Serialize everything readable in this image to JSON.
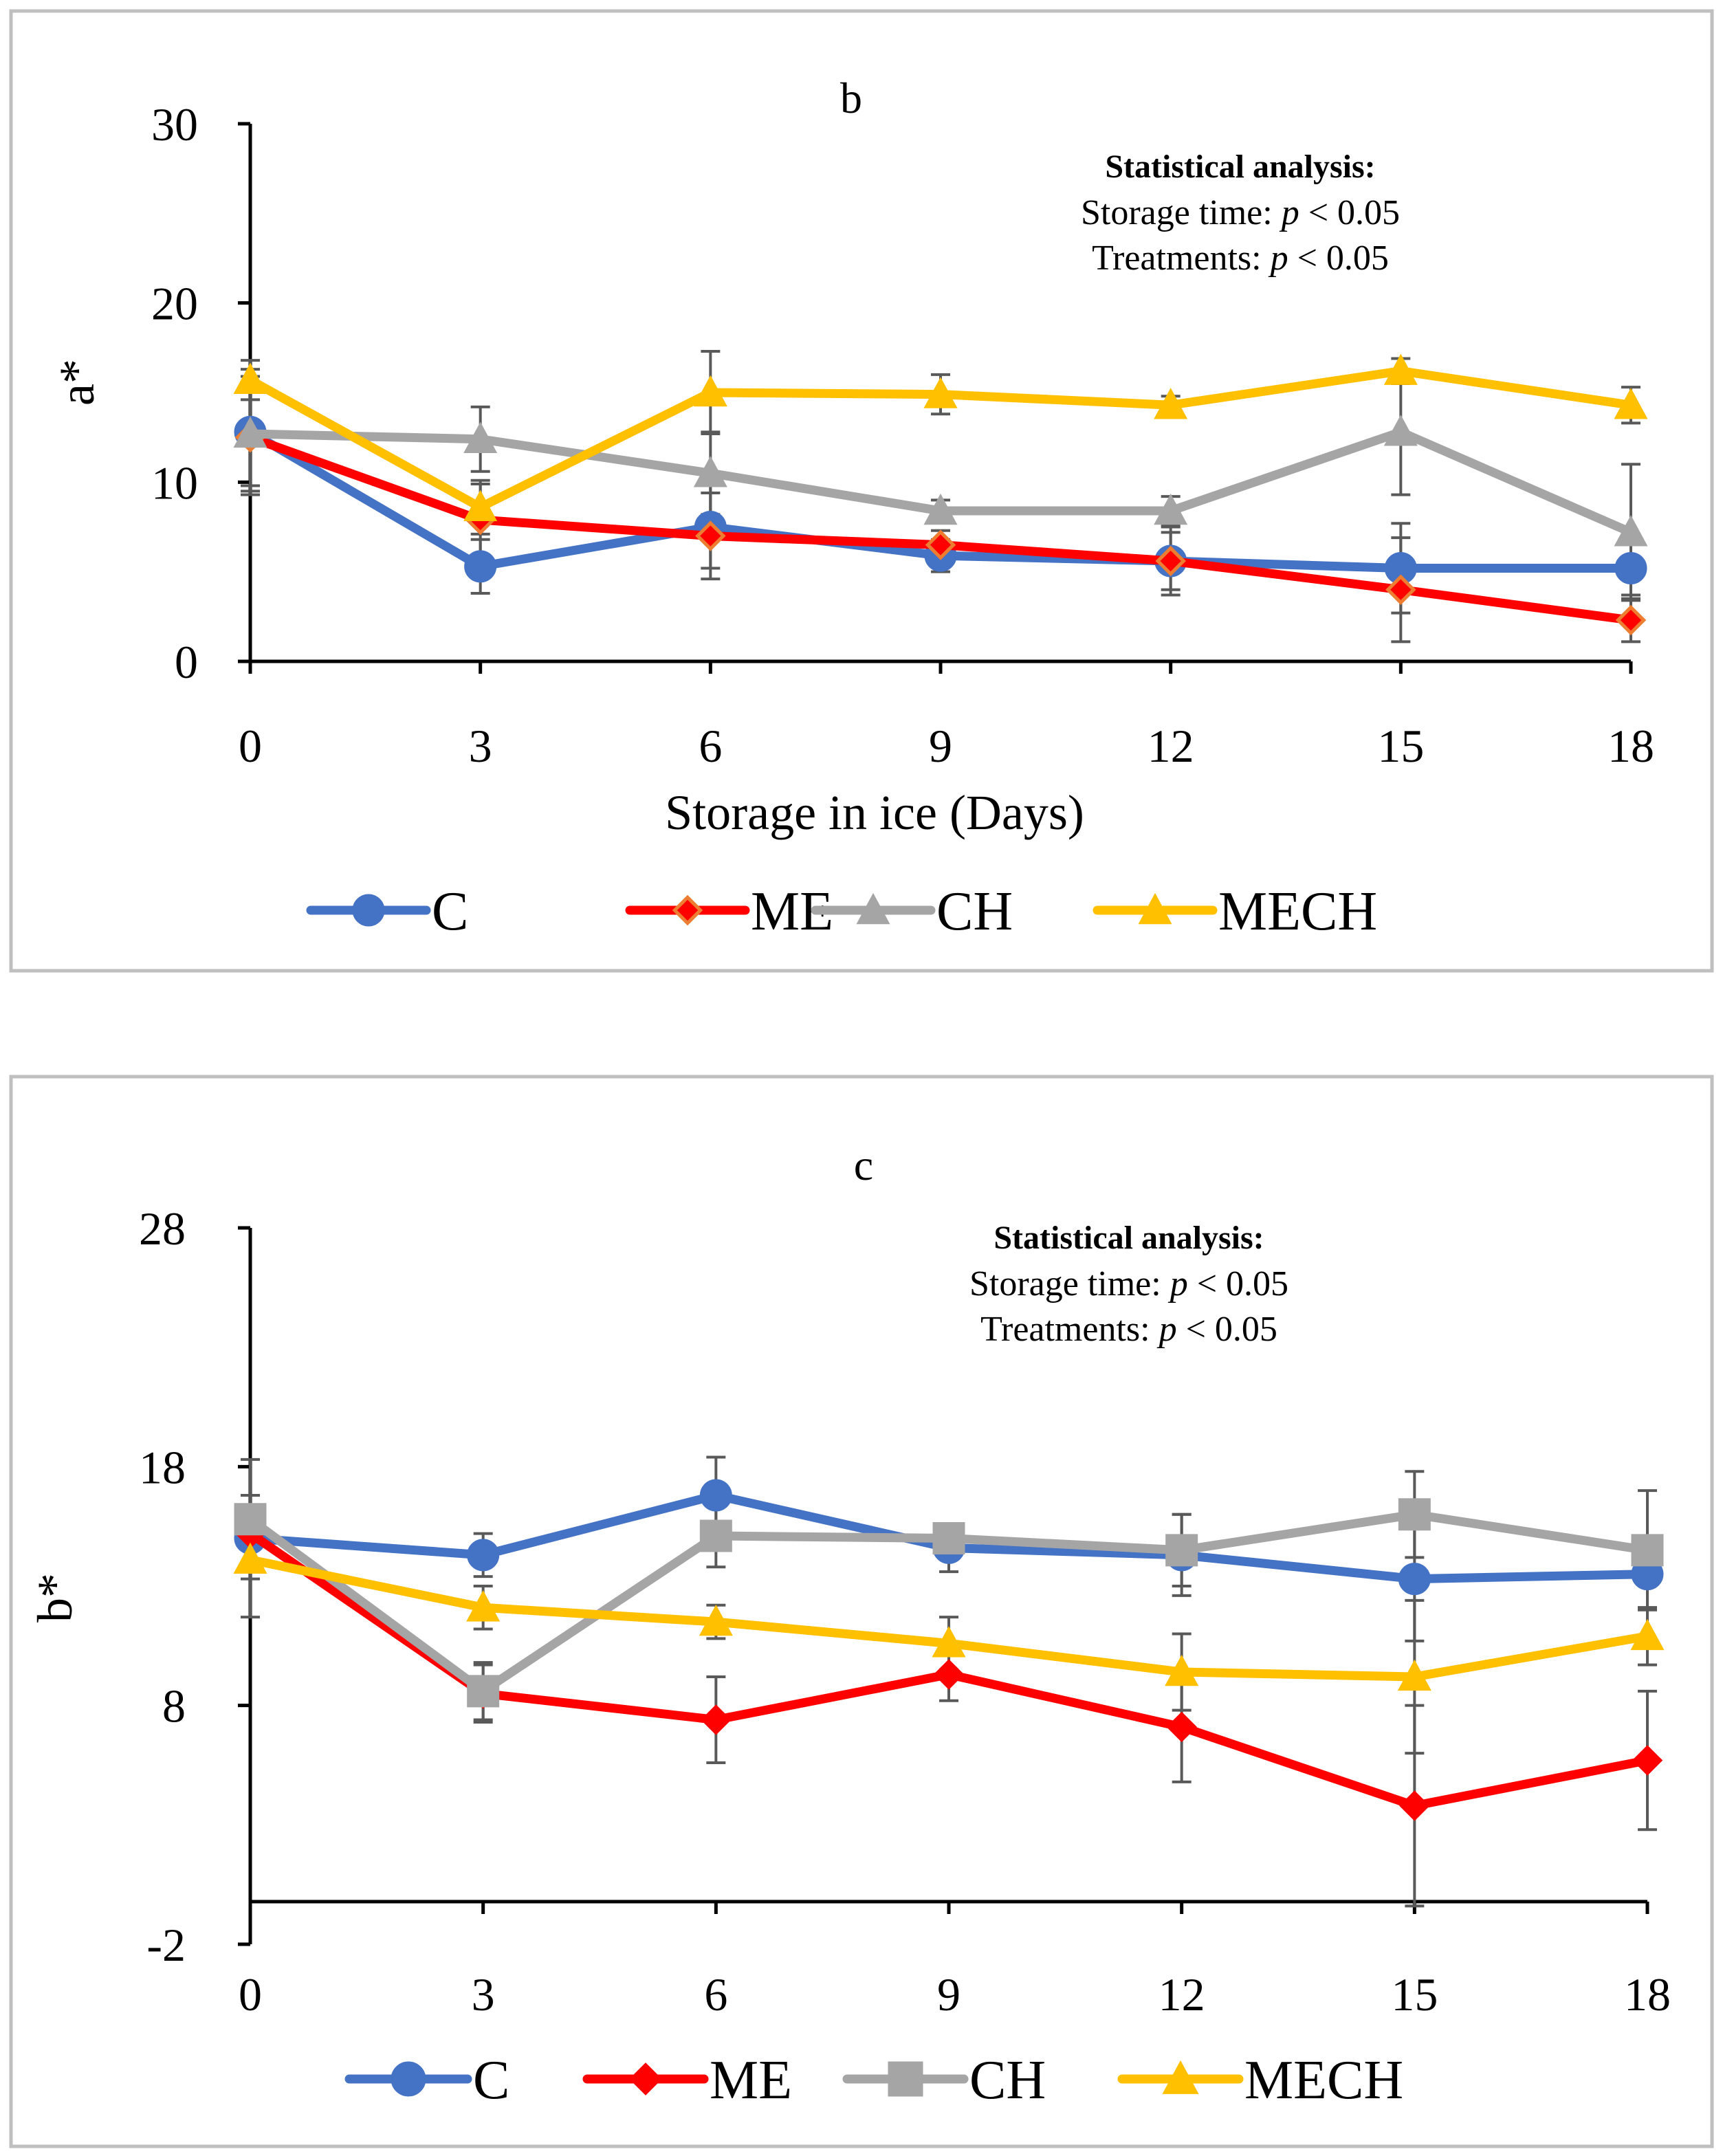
{
  "chart_data": [
    {
      "type": "line",
      "panel": "b",
      "xlabel": "Storage in ice (Days)",
      "ylabel": "a*",
      "x": [
        0,
        3,
        6,
        9,
        12,
        15,
        18
      ],
      "x_tick_labels": [
        "0",
        "3",
        "6",
        "9",
        "12",
        "15",
        "18"
      ],
      "ylim": [
        0,
        30
      ],
      "y_ticks": [
        0,
        10,
        20,
        30
      ],
      "y_tick_labels": [
        "0",
        "10",
        "20",
        "30"
      ],
      "stats": {
        "title": "Statistical analysis:",
        "line1_prefix": "Storage time: ",
        "line1_p": "p",
        "line1_suffix": " < 0.05",
        "line2_prefix": "Treatments: ",
        "line2_p": "p",
        "line2_suffix": " < 0.05"
      },
      "legend_position": "bottom",
      "series": [
        {
          "name": "C",
          "color": "#4472C4",
          "marker": "circle",
          "values": [
            12.8,
            5.3,
            7.5,
            5.9,
            5.6,
            5.2,
            5.2
          ],
          "errors": [
            3.5,
            1.5,
            2.3,
            0.9,
            1.9,
            2.5,
            1.5
          ]
        },
        {
          "name": "ME",
          "color": "#FF0000",
          "marker": "diamond",
          "marker_fill": "#FF0000",
          "marker_stroke": "#ED7D31",
          "values": [
            12.5,
            7.9,
            7.0,
            6.5,
            5.6,
            4.0,
            2.3
          ],
          "errors": [
            2.7,
            2.0,
            2.4,
            0.8,
            1.6,
            2.9,
            1.2
          ]
        },
        {
          "name": "CH",
          "color": "#A5A5A5",
          "marker": "triangle",
          "values": [
            12.7,
            12.4,
            10.5,
            8.4,
            8.4,
            12.8,
            7.2
          ],
          "errors": [
            3.2,
            1.8,
            2.3,
            0.6,
            0.8,
            3.5,
            3.8
          ]
        },
        {
          "name": "MECH",
          "color": "#FFC000",
          "marker": "triangle",
          "values": [
            15.7,
            8.6,
            15.0,
            14.9,
            14.3,
            16.2,
            14.3
          ],
          "errors": [
            1.1,
            1.5,
            2.3,
            1.1,
            0.5,
            0.7,
            1.0
          ]
        }
      ]
    },
    {
      "type": "line",
      "panel": "c",
      "xlabel": "",
      "ylabel": "b*",
      "x": [
        0,
        3,
        6,
        9,
        12,
        15,
        18
      ],
      "x_tick_labels": [
        "0",
        "3",
        "6",
        "9",
        "12",
        "15",
        "18"
      ],
      "ylim": [
        -2,
        28
      ],
      "y_ticks": [
        -2,
        8,
        18,
        28
      ],
      "y_tick_labels": [
        "-2",
        "8",
        "18",
        "28"
      ],
      "x_axis_at": 0,
      "stats": {
        "title": "Statistical analysis:",
        "line1_prefix": "Storage time: ",
        "line1_p": "p",
        "line1_suffix": " < 0.05",
        "line2_prefix": "Treatments: ",
        "line2_p": "p",
        "line2_suffix": " < 0.05"
      },
      "legend_position": "bottom",
      "series": [
        {
          "name": "C",
          "color": "#4472C4",
          "marker": "circle",
          "values": [
            15.0,
            14.3,
            16.8,
            14.6,
            14.3,
            13.3,
            13.5
          ],
          "errors": [
            3.3,
            0.9,
            1.6,
            1.0,
            1.7,
            2.6,
            1.4
          ]
        },
        {
          "name": "ME",
          "color": "#FF0000",
          "marker": "diamond",
          "marker_fill": "#FF0000",
          "marker_stroke": "#FF0000",
          "values": [
            15.2,
            8.5,
            7.4,
            9.3,
            7.1,
            3.8,
            5.7
          ],
          "errors": [
            1.2,
            1.2,
            1.8,
            1.1,
            2.3,
            4.2,
            2.9
          ]
        },
        {
          "name": "CH",
          "color": "#A5A5A5",
          "marker": "square",
          "values": [
            15.8,
            8.6,
            15.1,
            15.0,
            14.5,
            16.0,
            14.5
          ],
          "errors": [
            1.0,
            1.2,
            1.3,
            0.6,
            1.5,
            1.8,
            2.5
          ]
        },
        {
          "name": "MECH",
          "color": "#FFC000",
          "marker": "triangle",
          "values": [
            14.1,
            12.1,
            11.5,
            10.6,
            9.4,
            9.2,
            10.9
          ],
          "errors": [
            0.8,
            0.9,
            0.7,
            1.1,
            1.6,
            3.2,
            1.2
          ]
        }
      ]
    }
  ]
}
